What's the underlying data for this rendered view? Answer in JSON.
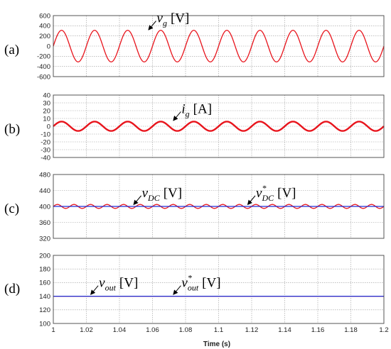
{
  "colors": {
    "red": "#e8141c",
    "blue": "#1f2fd6",
    "grid": "#9a9a9a",
    "frame": "#444444"
  },
  "x_axis": {
    "label": "Time (s)",
    "ticks": [
      "1",
      "1.02",
      "1.04",
      "1.06",
      "1.08",
      "1.1",
      "1.12",
      "1.14",
      "1.16",
      "1.18",
      "1.2"
    ]
  },
  "chart_data": [
    {
      "type": "line",
      "panel_label": "(a)",
      "xlim": [
        1.0,
        1.2
      ],
      "ylim": [
        -600,
        600
      ],
      "yticks": [
        "600",
        "400",
        "200",
        "0",
        "-200",
        "-400",
        "-600"
      ],
      "grid": true,
      "series": [
        {
          "kind": "sine",
          "color": "red",
          "amplitude": 311,
          "offset": 0,
          "frequency_hz": 50,
          "phase_deg": 0,
          "stroke": 1.3
        }
      ],
      "annotations": [
        {
          "symbol": "v",
          "subscript": "g",
          "superscript": "",
          "unit": "[V]",
          "x": 1.057,
          "y": 300
        }
      ]
    },
    {
      "type": "line",
      "panel_label": "(b)",
      "xlim": [
        1.0,
        1.2
      ],
      "ylim": [
        -40,
        40
      ],
      "yticks": [
        "40",
        "30",
        "20",
        "10",
        "0",
        "-10",
        "-20",
        "-30",
        "-40"
      ],
      "grid": true,
      "series": [
        {
          "kind": "sine",
          "color": "red",
          "amplitude": 6,
          "offset": 0,
          "frequency_hz": 50,
          "phase_deg": 0,
          "stroke": 2.4
        }
      ],
      "annotations": [
        {
          "symbol": "i",
          "subscript": "g",
          "superscript": "",
          "unit": "[A]",
          "x": 1.072,
          "y": 6
        }
      ]
    },
    {
      "type": "line",
      "panel_label": "(c)",
      "xlim": [
        1.0,
        1.2
      ],
      "ylim": [
        320,
        480
      ],
      "yticks": [
        "480",
        "440",
        "400",
        "360",
        "320"
      ],
      "grid": true,
      "series": [
        {
          "kind": "sine",
          "color": "red",
          "amplitude": 5,
          "offset": 400,
          "frequency_hz": 100,
          "phase_deg": 0,
          "stroke": 1.3
        },
        {
          "kind": "constant",
          "color": "blue",
          "amplitude": 0,
          "offset": 400,
          "frequency_hz": 0,
          "phase_deg": 0,
          "stroke": 1.3
        }
      ],
      "annotations": [
        {
          "symbol": "v",
          "subscript": "DC",
          "superscript": "",
          "unit": "[V]",
          "x": 1.048,
          "y": 402
        },
        {
          "symbol": "v",
          "subscript": "DC",
          "superscript": "*",
          "unit": "[V]",
          "x": 1.117,
          "y": 402
        }
      ]
    },
    {
      "type": "line",
      "panel_label": "(d)",
      "xlim": [
        1.0,
        1.2
      ],
      "ylim": [
        100,
        200
      ],
      "yticks": [
        "200",
        "180",
        "160",
        "140",
        "120",
        "100"
      ],
      "grid": true,
      "series": [
        {
          "kind": "constant",
          "color": "red",
          "amplitude": 0,
          "offset": 140,
          "frequency_hz": 0,
          "phase_deg": 0,
          "stroke": 1.3
        },
        {
          "kind": "constant",
          "color": "blue",
          "amplitude": 0,
          "offset": 140,
          "frequency_hz": 0,
          "phase_deg": 0,
          "stroke": 1.3
        }
      ],
      "annotations": [
        {
          "symbol": "v",
          "subscript": "out",
          "superscript": "",
          "unit": "[V]",
          "x": 1.022,
          "y": 141
        },
        {
          "symbol": "v",
          "subscript": "out",
          "superscript": "*",
          "unit": "[V]",
          "x": 1.072,
          "y": 141
        }
      ]
    }
  ]
}
